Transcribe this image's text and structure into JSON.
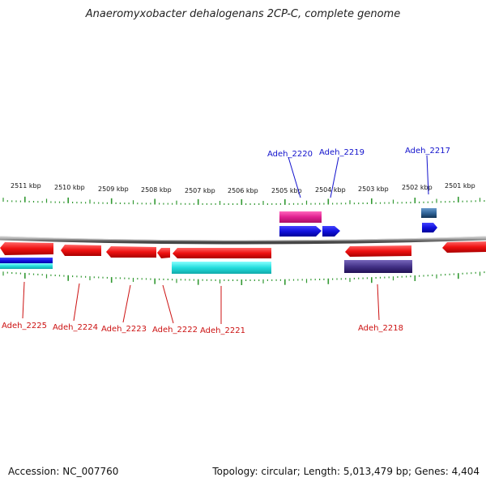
{
  "title": "Anaeromyxobacter dehalogenans 2CP-C, complete genome",
  "footer": {
    "accession": "Accession: NC_007760",
    "topology": "Topology: circular; Length: 5,013,479 bp; Genes: 4,404"
  },
  "scale_labels": [
    "2511 kbp",
    "2510 kbp",
    "2509 kbp",
    "2508 kbp",
    "2507 kbp",
    "2506 kbp",
    "2505 kbp",
    "2504 kbp",
    "2503 kbp",
    "2502 kbp",
    "2501 kbp"
  ],
  "gene_labels": {
    "top": [
      "Adeh_2220",
      "Adeh_2219",
      "Adeh_2217"
    ],
    "bottom": [
      "Adeh_2225",
      "Adeh_2224",
      "Adeh_2223",
      "Adeh_2222",
      "Adeh_2221",
      "Adeh_2218"
    ]
  },
  "colors": {
    "red": "#ee1111",
    "blue": "#1111dd",
    "cyan": "#22dddd",
    "magenta": "#e02090",
    "slate": "#443388",
    "steel": "#336699",
    "tick": "#339933",
    "label_top": "#1111cc",
    "label_bottom": "#cc1111"
  }
}
